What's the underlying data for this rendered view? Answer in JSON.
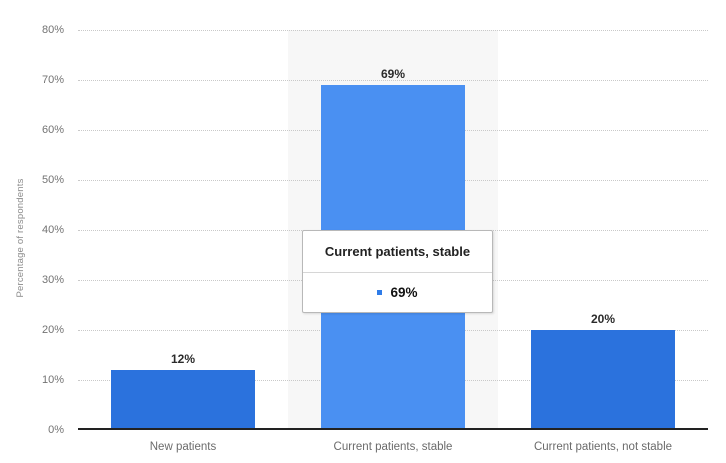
{
  "chart_data": {
    "type": "bar",
    "title": "",
    "categories": [
      "New patients",
      "Current patients, stable",
      "Current patients, not stable"
    ],
    "values": [
      12,
      69,
      20
    ],
    "value_labels": [
      "12%",
      "69%",
      "20%"
    ],
    "xlabel": "",
    "ylabel": "Percentage of respondents",
    "ylim": [
      0,
      80
    ],
    "ytick_step": 10,
    "yticks": [
      "0%",
      "10%",
      "20%",
      "30%",
      "40%",
      "50%",
      "60%",
      "70%",
      "80%"
    ],
    "grid": "horizontal-dotted",
    "legend": "none",
    "highlighted_index": 1,
    "tooltip": {
      "title": "Current patients, stable",
      "value": "69%"
    },
    "colors": {
      "bar": "#2b72dd",
      "bar_highlight": "#4a90f2",
      "hover_band": "#f7f7f7",
      "gridline": "#c9c9c9",
      "axis_line": "#222222",
      "tick_label": "#737373",
      "category_label": "#6b6b6b",
      "value_label": "#2b2b2b",
      "tooltip_border": "#b8b8b8",
      "tooltip_marker": "#2f7ce8"
    }
  }
}
